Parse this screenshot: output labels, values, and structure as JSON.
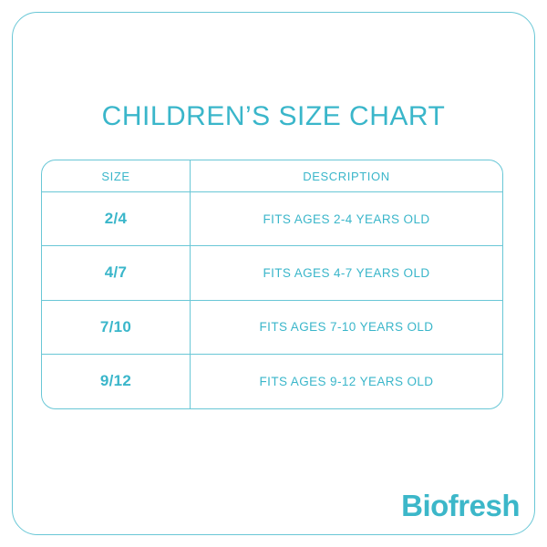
{
  "page": {
    "title": "CHILDREN’S SIZE CHART",
    "brand": "Biofresh",
    "colors": {
      "teal_text": "#3ab6ca",
      "teal_border": "#69c7d6",
      "background": "#ffffff"
    }
  },
  "table": {
    "headers": [
      "SIZE",
      "DESCRIPTION"
    ],
    "rows": [
      {
        "size": "2/4",
        "description": "FITS AGES 2-4 YEARS OLD"
      },
      {
        "size": "4/7",
        "description": "FITS AGES 4-7 YEARS OLD"
      },
      {
        "size": "7/10",
        "description": "FITS AGES 7-10 YEARS OLD"
      },
      {
        "size": "9/12",
        "description": "FITS AGES 9-12 YEARS OLD"
      }
    ]
  }
}
